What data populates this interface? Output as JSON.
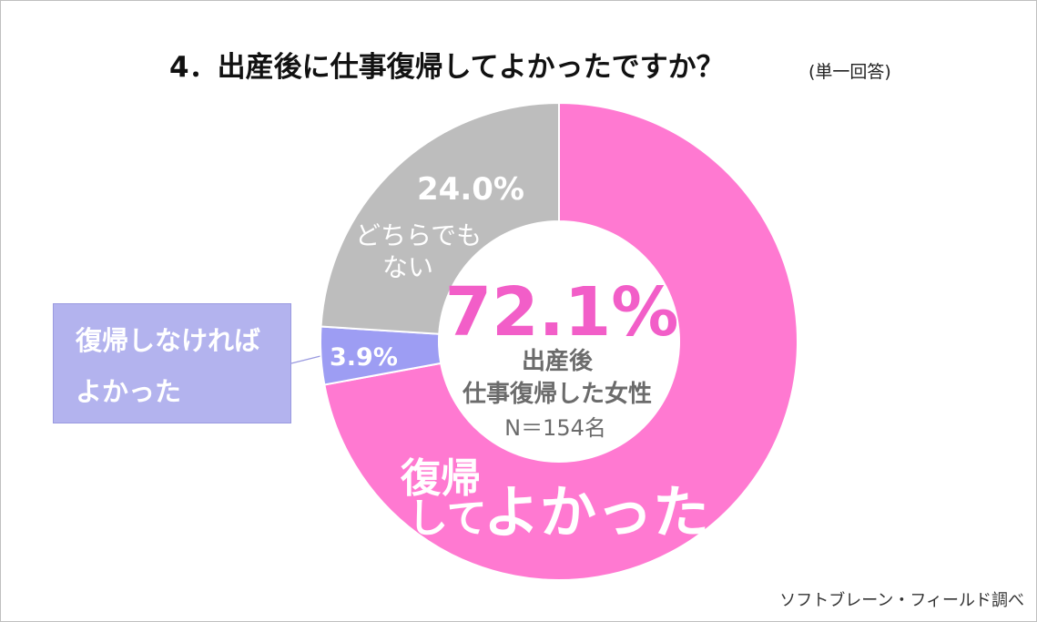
{
  "title": "4．出産後に仕事復帰してよかったですか？",
  "subtitle": "(単一回答)",
  "source": "ソフトブレーン・フィールド調べ",
  "center": {
    "percent": "72.1%",
    "line1": "出産後",
    "line2": "仕事復帰した女性",
    "n": "N＝154名"
  },
  "callout": {
    "line1": "復帰しなければ",
    "line2": "よかった"
  },
  "labels": {
    "good_line1": "復帰",
    "good_line2a": "して",
    "good_line2b": "よかった",
    "neither_pct": "24.0%",
    "neither_line1": "どちらでも",
    "neither_line2": "ない",
    "bad_pct": "3.9%"
  },
  "colors": {
    "good": "#ff79d1",
    "bad": "#9d9df3",
    "neither": "#bdbdbd",
    "center_pct": "#f25ec8",
    "center_text": "#6b6b6b"
  },
  "chart_data": {
    "type": "pie",
    "donut": true,
    "start_angle": "12 o'clock",
    "direction": "clockwise",
    "slices": [
      {
        "label": "復帰してよかった",
        "value": 72.1
      },
      {
        "label": "復帰しなければよかった",
        "value": 3.9
      },
      {
        "label": "どちらでもない",
        "value": 24.0
      }
    ]
  }
}
